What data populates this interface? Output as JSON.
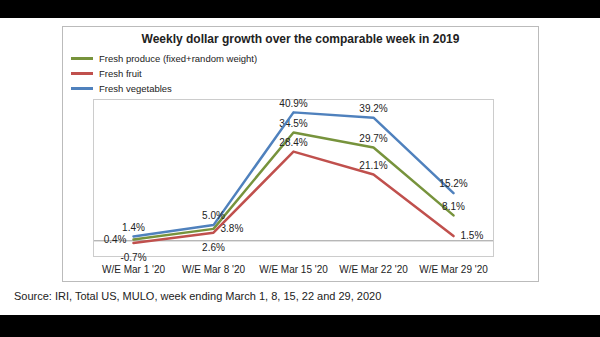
{
  "chart_data": {
    "type": "line",
    "title": "Weekly dollar growth over the comparable week in 2019",
    "caption": "Source: IRI, Total US, MULO, week ending March 1, 8, 15, 22 and 29, 2020",
    "categories": [
      "W/E Mar 1 '20",
      "W/E Mar 8 '20",
      "W/E Mar 15 '20",
      "W/E Mar 22 '20",
      "W/E Mar 29 '20"
    ],
    "series": [
      {
        "name": "Fresh produce (fixed+random weight)",
        "color": "#77933c",
        "values": [
          0.4,
          3.8,
          34.5,
          29.7,
          8.1
        ],
        "value_labels": [
          "0.4%",
          "3.8%",
          "34.5%",
          "29.7%",
          "8.1%"
        ]
      },
      {
        "name": "Fresh fruit",
        "color": "#c0504d",
        "values": [
          -0.7,
          2.6,
          28.4,
          21.1,
          1.5
        ],
        "value_labels": [
          "-0.7%",
          "2.6%",
          "28.4%",
          "21.1%",
          "1.5%"
        ]
      },
      {
        "name": "Fresh vegetables",
        "color": "#4f81bd",
        "values": [
          1.4,
          5.0,
          40.9,
          39.2,
          15.2
        ],
        "value_labels": [
          "1.4%",
          "5.0%",
          "40.9%",
          "39.2%",
          "15.2%"
        ]
      }
    ],
    "ylim": [
      -5,
      45
    ],
    "yticks": [
      0
    ],
    "grid": true,
    "legend": "upper left",
    "data_labels": true,
    "tick_labels": "x"
  }
}
